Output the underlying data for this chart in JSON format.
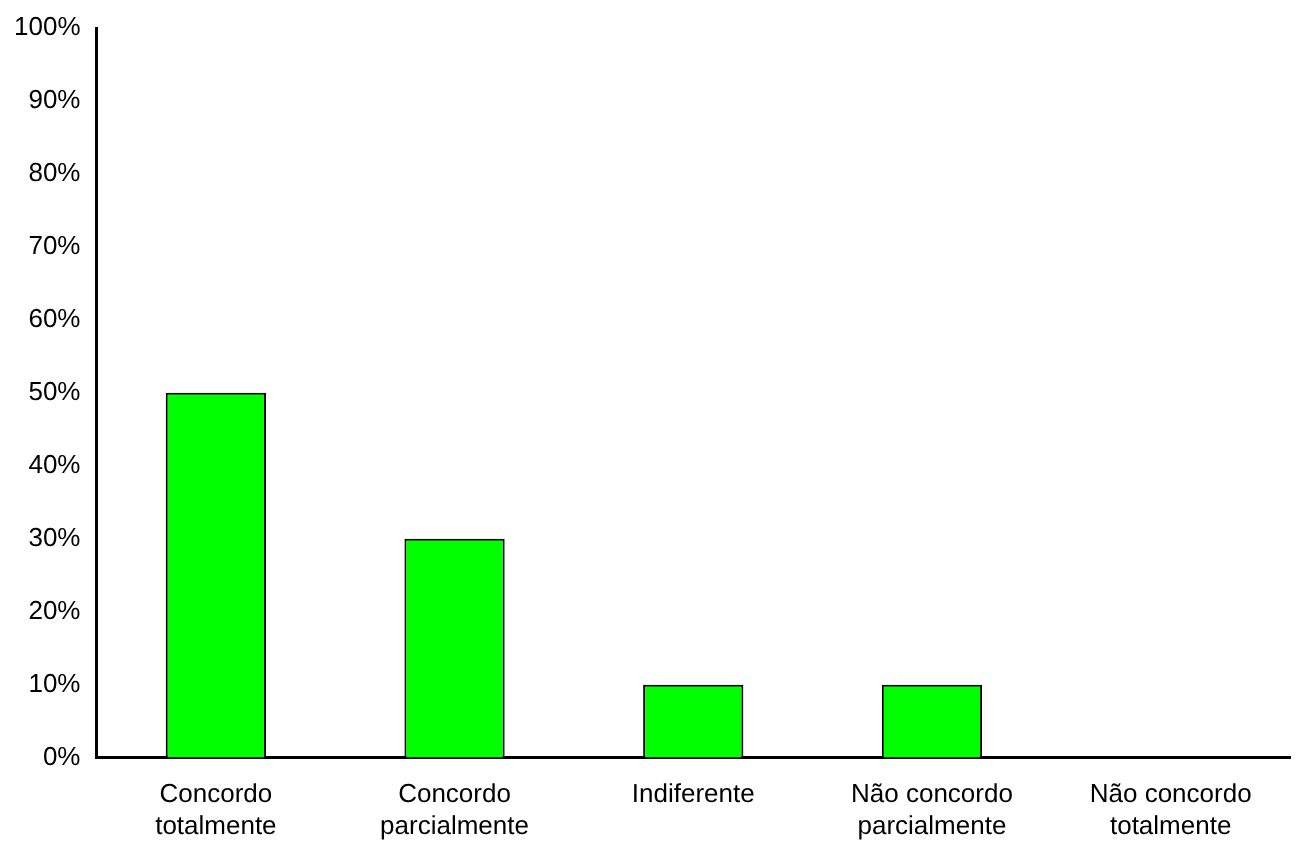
{
  "chart_data": {
    "type": "bar",
    "categories": [
      "Concordo totalmente",
      "Concordo parcialmente",
      "Indiferente",
      "Não concordo parcialmente",
      "Não concordo totalmente"
    ],
    "values": [
      50,
      30,
      10,
      10,
      0
    ],
    "color": "#00ff00",
    "ylim": [
      0,
      100
    ],
    "yticks": [
      {
        "value": 0,
        "label": "0%"
      },
      {
        "value": 10,
        "label": "10%"
      },
      {
        "value": 20,
        "label": "20%"
      },
      {
        "value": 30,
        "label": "30%"
      },
      {
        "value": 40,
        "label": "40%"
      },
      {
        "value": 50,
        "label": "50%"
      },
      {
        "value": 60,
        "label": "60%"
      },
      {
        "value": 70,
        "label": "70%"
      },
      {
        "value": 80,
        "label": "80%"
      },
      {
        "value": 90,
        "label": "90%"
      },
      {
        "value": 100,
        "label": "100%"
      }
    ],
    "grid": false,
    "legend": false
  }
}
